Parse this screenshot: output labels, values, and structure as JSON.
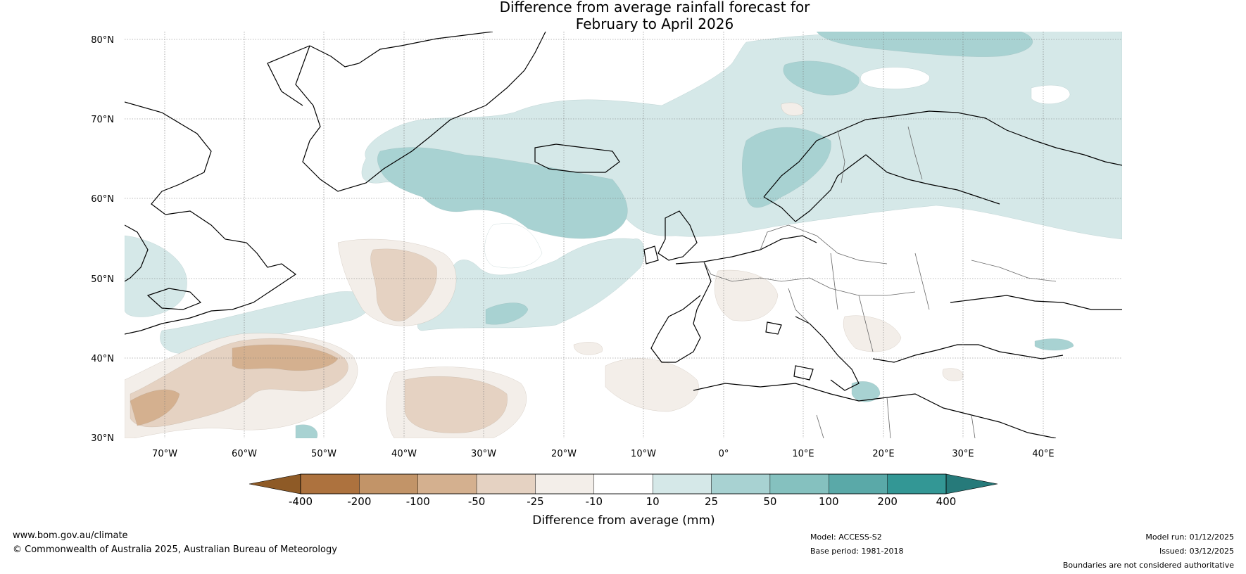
{
  "title": {
    "line1": "Difference from average rainfall forecast for",
    "line2": "February to April 2026"
  },
  "map": {
    "lat_labels": [
      "80°N",
      "70°N",
      "60°N",
      "50°N",
      "40°N",
      "30°N"
    ],
    "lon_labels": [
      "70°W",
      "60°W",
      "50°W",
      "40°W",
      "30°W",
      "20°W",
      "10°W",
      "0°",
      "10°E",
      "20°E",
      "30°E",
      "40°E"
    ],
    "extent": {
      "lon_min": -75,
      "lon_max": 50,
      "lat_min": 30,
      "lat_max": 81
    }
  },
  "colorbar": {
    "labels": [
      "-400",
      "-200",
      "-100",
      "-50",
      "-25",
      "-10",
      "10",
      "25",
      "50",
      "100",
      "200",
      "400"
    ],
    "colors": [
      "#8e5a26",
      "#ad723e",
      "#c29468",
      "#d4b08f",
      "#e5d2c2",
      "#f3eee9",
      "#ffffff",
      "#d5e8e8",
      "#a8d2d2",
      "#85c1bf",
      "#5aa9a8",
      "#339795",
      "#267a7a"
    ],
    "label": "Difference from average (mm)"
  },
  "footer": {
    "url": "www.bom.gov.au/climate",
    "copyright": "© Commonwealth of Australia 2025, Australian Bureau of Meteorology",
    "model": "Model: ACCESS-S2",
    "base_period": "Base period: 1981-2018",
    "model_run": "Model run: 01/12/2025",
    "issued": "Issued: 03/12/2025",
    "disclaimer": "Boundaries are not considered authoritative"
  }
}
